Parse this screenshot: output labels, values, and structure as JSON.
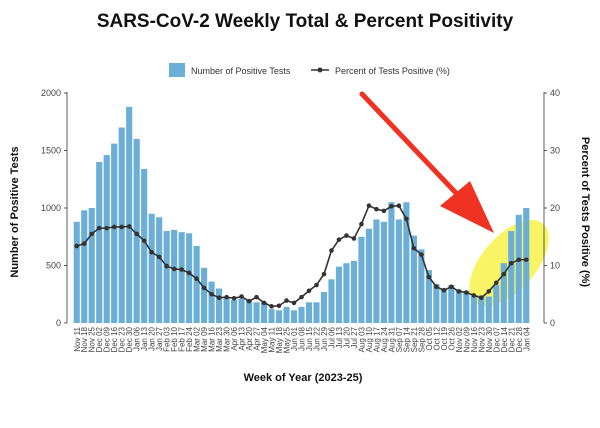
{
  "chart_data": {
    "type": "bar",
    "title": "SARS-CoV-2 Weekly Total & Percent Positivity",
    "xlabel": "Week of Year (2023-25)",
    "ylabel_left": "Number of Positive Tests",
    "ylabel_right": "Percent of Tests Positive (%)",
    "ylim_left": [
      0,
      2000
    ],
    "ylim_right": [
      0,
      40
    ],
    "yticks_left": [
      "0",
      "500",
      "1000",
      "1500",
      "2000"
    ],
    "yticks_right": [
      "0",
      "10",
      "20",
      "30",
      "40"
    ],
    "grid": false,
    "legend_position": "top",
    "colors": {
      "bar": "#6baed6",
      "line": "#333333",
      "highlight": "#f5f032",
      "arrow": "#f03222"
    },
    "categories": [
      "Nov 11",
      "Nov 18",
      "Nov 25",
      "Dec 02",
      "Dec 09",
      "Dec 16",
      "Dec 23",
      "Dec 30",
      "Jan 06",
      "Jan 13",
      "Jan 20",
      "Jan 27",
      "Feb 03",
      "Feb 10",
      "Feb 17",
      "Feb 24",
      "Mar 02",
      "Mar 09",
      "Mar 16",
      "Mar 23",
      "Mar 30",
      "Apr 06",
      "Apr 13",
      "Apr 20",
      "Apr 27",
      "May 04",
      "May 11",
      "May 18",
      "May 25",
      "Jun 01",
      "Jun 08",
      "Jun 15",
      "Jun 22",
      "Jun 29",
      "Jul 06",
      "Jul 13",
      "Jul 20",
      "Jul 27",
      "Aug 03",
      "Aug 10",
      "Aug 17",
      "Aug 24",
      "Aug 31",
      "Sep 07",
      "Sep 14",
      "Sep 21",
      "Sep 28",
      "Oct 05",
      "Oct 12",
      "Oct 19",
      "Oct 26",
      "Nov 02",
      "Nov 09",
      "Nov 16",
      "Nov 23",
      "Nov 30",
      "Dec 07",
      "Dec 14",
      "Dec 21",
      "Dec 28",
      "Jan 04"
    ],
    "tick_labels": [
      "Nov 11",
      "Nov 18",
      "Nov 25",
      "Dec 02",
      "Dec 09",
      "Dec 16",
      "Dec 23",
      "Dec 30",
      "Jan 06",
      "Jan 13",
      "Jan 20",
      "Jan 27",
      "Feb 03",
      "Feb 10",
      "Feb 17",
      "Feb 24",
      "Mar 02",
      "Mar 09",
      "Mar 16",
      "Mar 23",
      "Mar 30",
      "Apr 06",
      "Apr 13",
      "Apr 20",
      "Apr 27",
      "May 04",
      "May 11",
      "May 18",
      "May 25",
      "Jun 01",
      "Jun 08",
      "Jun 15",
      "Jun 22",
      "Jun 29",
      "Jul 06",
      "Jul 13",
      "Jul 20",
      "Jul 27",
      "Aug 03",
      "Aug 10",
      "Aug 17",
      "Aug 24",
      "Aug 31",
      "Sep 07",
      "Sep 14",
      "Sep 21",
      "Sep 28",
      "Oct 05",
      "Oct 12",
      "Oct 19",
      "Oct 26",
      "Nov 02",
      "Nov 09",
      "Nov 16",
      "Nov 23",
      "Nov 30",
      "Dec 07",
      "Dec 14",
      "Dec 21",
      "Dec 28",
      "Jan 04"
    ],
    "series": [
      {
        "name": "Number of Positive Tests",
        "type": "bar",
        "axis": "left",
        "values": [
          880,
          980,
          1000,
          1400,
          1460,
          1560,
          1700,
          1880,
          1600,
          1340,
          950,
          920,
          800,
          810,
          790,
          780,
          670,
          480,
          360,
          300,
          230,
          200,
          210,
          200,
          180,
          180,
          120,
          110,
          140,
          110,
          140,
          180,
          180,
          270,
          380,
          490,
          520,
          540,
          750,
          820,
          900,
          880,
          1050,
          900,
          1050,
          760,
          640,
          460,
          340,
          300,
          330,
          290,
          280,
          240,
          240,
          230,
          330,
          520,
          800,
          940,
          1000
        ],
        "annotation": "highlighted and pointed to by arrow (Dec 07 - Jan 04)"
      },
      {
        "name": "Percent of Tests Positive (%)",
        "type": "line",
        "axis": "right",
        "values": [
          13.4,
          13.8,
          15.5,
          16.5,
          16.5,
          16.7,
          16.7,
          16.8,
          15.5,
          14.3,
          12.3,
          11.5,
          9.9,
          9.4,
          9.3,
          8.7,
          7.7,
          6.1,
          5.0,
          4.4,
          4.5,
          4.3,
          4.6,
          3.8,
          4.5,
          3.5,
          2.9,
          3.0,
          3.9,
          3.5,
          4.5,
          5.6,
          6.6,
          8.5,
          12.6,
          14.5,
          15.2,
          14.7,
          17.2,
          20.4,
          19.8,
          19.5,
          20.3,
          20.4,
          18.1,
          13.0,
          11.9,
          8.0,
          6.3,
          5.7,
          6.3,
          5.5,
          5.3,
          4.8,
          4.4,
          5.5,
          7.0,
          8.5,
          10.4,
          11.0,
          11.0
        ]
      }
    ]
  }
}
